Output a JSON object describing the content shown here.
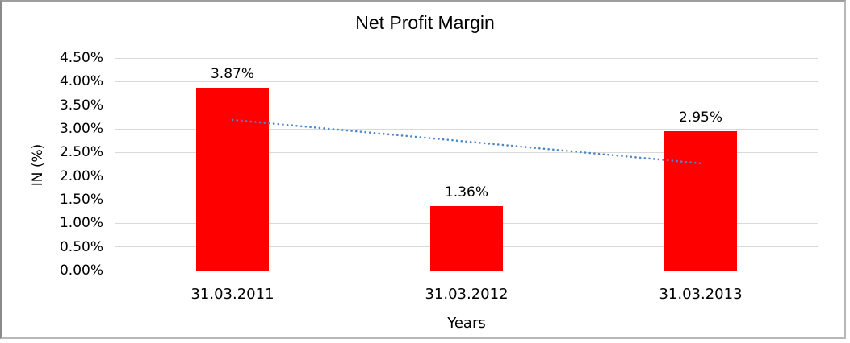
{
  "window": {
    "background_color": "#ffffff",
    "frame_border_color": "#a8a8a8"
  },
  "chart_data": {
    "type": "bar",
    "title": "Net Profit Margin",
    "xlabel": "Years",
    "ylabel": "IN (%)",
    "categories": [
      "31.03.2011",
      "31.03.2012",
      "31.03.2013"
    ],
    "values": [
      3.87,
      1.36,
      2.95
    ],
    "data_labels": [
      "3.87%",
      "1.36%",
      "2.95%"
    ],
    "y_ticks": [
      "0.00%",
      "0.50%",
      "1.00%",
      "1.50%",
      "2.00%",
      "2.50%",
      "3.00%",
      "3.50%",
      "4.00%",
      "4.50%"
    ],
    "ylim": [
      0,
      4.5
    ],
    "grid": "horizontal",
    "legend_position": "none",
    "bar_color": "#ff0000",
    "gridline_color": "#d9d9d9",
    "text_color": "#000000",
    "trendline": {
      "type": "linear",
      "style": "dotted",
      "color": "#4f86c6",
      "start_value": 3.19,
      "end_value": 2.27
    }
  }
}
